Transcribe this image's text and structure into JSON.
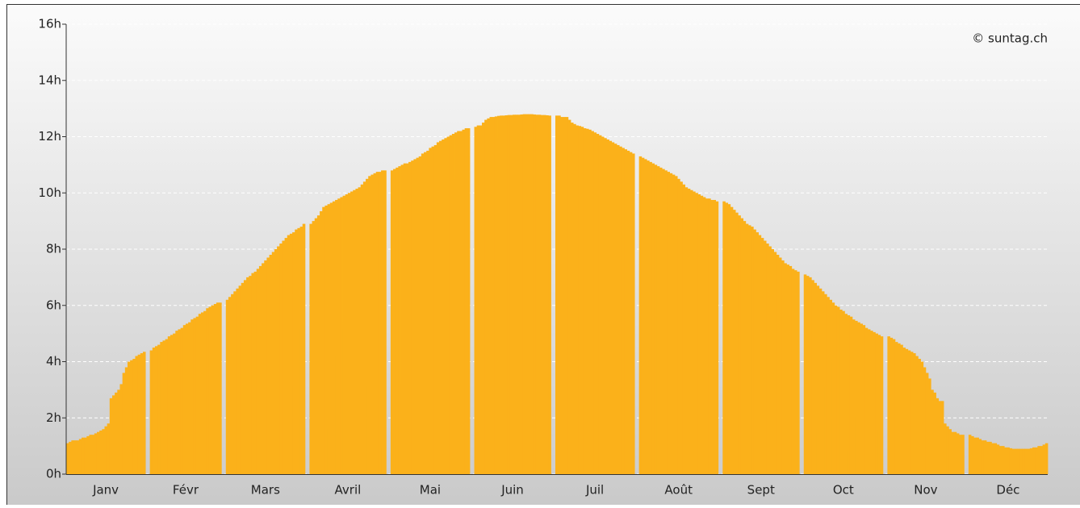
{
  "chart_data": {
    "type": "bar",
    "watermark": "© suntag.ch",
    "color": "#fbb11a",
    "grid": true,
    "ylim": [
      0,
      16
    ],
    "yticks": [
      {
        "value": 0,
        "label": "0h"
      },
      {
        "value": 2,
        "label": "2h"
      },
      {
        "value": 4,
        "label": "4h"
      },
      {
        "value": 6,
        "label": "6h"
      },
      {
        "value": 8,
        "label": "8h"
      },
      {
        "value": 10,
        "label": "10h"
      },
      {
        "value": 12,
        "label": "12h"
      },
      {
        "value": 14,
        "label": "14h"
      },
      {
        "value": 16,
        "label": "16h"
      }
    ],
    "categories": [
      "Janv",
      "Févr",
      "Mars",
      "Avril",
      "Mai",
      "Juin",
      "Juil",
      "Août",
      "Sept",
      "Oct",
      "Nov",
      "Déc"
    ],
    "values": [
      [
        1.1,
        1.15,
        1.2,
        1.2,
        1.2,
        1.25,
        1.3,
        1.3,
        1.35,
        1.4,
        1.4,
        1.45,
        1.5,
        1.55,
        1.6,
        1.7,
        1.8,
        2.7,
        2.8,
        2.9,
        3.0,
        3.2,
        3.6,
        3.8,
        4.0,
        4.05,
        4.1,
        4.2,
        4.25,
        4.3,
        4.35
      ],
      [
        4.4,
        4.5,
        4.55,
        4.6,
        4.7,
        4.75,
        4.8,
        4.9,
        4.95,
        5.0,
        5.1,
        5.15,
        5.2,
        5.3,
        5.35,
        5.4,
        5.5,
        5.55,
        5.6,
        5.7,
        5.75,
        5.8,
        5.9,
        5.95,
        6.0,
        6.05,
        6.1,
        6.1
      ],
      [
        6.2,
        6.3,
        6.4,
        6.5,
        6.6,
        6.7,
        6.8,
        6.9,
        7.0,
        7.05,
        7.15,
        7.2,
        7.3,
        7.4,
        7.5,
        7.6,
        7.7,
        7.8,
        7.9,
        8.0,
        8.1,
        8.2,
        8.3,
        8.4,
        8.5,
        8.55,
        8.6,
        8.7,
        8.75,
        8.8,
        8.9
      ],
      [
        8.9,
        9.0,
        9.1,
        9.2,
        9.35,
        9.5,
        9.55,
        9.6,
        9.65,
        9.7,
        9.75,
        9.8,
        9.85,
        9.9,
        9.95,
        10.0,
        10.05,
        10.1,
        10.15,
        10.2,
        10.3,
        10.4,
        10.5,
        10.6,
        10.65,
        10.7,
        10.75,
        10.75,
        10.8,
        10.8
      ],
      [
        10.8,
        10.85,
        10.9,
        10.95,
        11.0,
        11.05,
        11.05,
        11.1,
        11.15,
        11.2,
        11.25,
        11.3,
        11.4,
        11.45,
        11.5,
        11.6,
        11.65,
        11.7,
        11.8,
        11.85,
        11.9,
        11.95,
        12.0,
        12.05,
        12.1,
        12.15,
        12.2,
        12.2,
        12.25,
        12.3,
        12.3
      ],
      [
        12.35,
        12.4,
        12.4,
        12.5,
        12.6,
        12.65,
        12.7,
        12.7,
        12.72,
        12.74,
        12.75,
        12.75,
        12.76,
        12.77,
        12.77,
        12.78,
        12.78,
        12.78,
        12.79,
        12.8,
        12.8,
        12.8,
        12.8,
        12.79,
        12.78,
        12.78,
        12.77,
        12.77,
        12.76,
        12.75
      ],
      [
        12.75,
        12.75,
        12.7,
        12.7,
        12.7,
        12.6,
        12.5,
        12.45,
        12.4,
        12.38,
        12.35,
        12.3,
        12.28,
        12.25,
        12.2,
        12.15,
        12.1,
        12.05,
        12.0,
        11.95,
        11.9,
        11.85,
        11.8,
        11.75,
        11.7,
        11.65,
        11.6,
        11.55,
        11.5,
        11.45,
        11.4
      ],
      [
        11.3,
        11.25,
        11.2,
        11.15,
        11.1,
        11.05,
        11.0,
        10.95,
        10.9,
        10.85,
        10.8,
        10.75,
        10.7,
        10.65,
        10.6,
        10.5,
        10.4,
        10.3,
        10.2,
        10.15,
        10.1,
        10.05,
        10.0,
        9.95,
        9.9,
        9.85,
        9.8,
        9.8,
        9.75,
        9.75,
        9.7
      ],
      [
        9.7,
        9.65,
        9.6,
        9.5,
        9.4,
        9.3,
        9.2,
        9.1,
        9.0,
        8.9,
        8.85,
        8.8,
        8.7,
        8.6,
        8.5,
        8.4,
        8.3,
        8.2,
        8.1,
        8.0,
        7.9,
        7.8,
        7.7,
        7.6,
        7.5,
        7.45,
        7.4,
        7.3,
        7.25,
        7.2
      ],
      [
        7.1,
        7.05,
        7.0,
        6.9,
        6.8,
        6.7,
        6.6,
        6.5,
        6.4,
        6.3,
        6.2,
        6.1,
        6.0,
        5.95,
        5.85,
        5.8,
        5.7,
        5.65,
        5.6,
        5.5,
        5.45,
        5.4,
        5.35,
        5.3,
        5.2,
        5.15,
        5.1,
        5.05,
        5.0,
        4.95,
        4.9
      ],
      [
        4.9,
        4.85,
        4.8,
        4.7,
        4.65,
        4.6,
        4.5,
        4.45,
        4.4,
        4.35,
        4.3,
        4.2,
        4.1,
        4.0,
        3.8,
        3.6,
        3.4,
        3.0,
        2.9,
        2.7,
        2.6,
        2.6,
        1.8,
        1.7,
        1.6,
        1.5,
        1.5,
        1.45,
        1.4,
        1.4
      ],
      [
        1.4,
        1.35,
        1.3,
        1.3,
        1.25,
        1.2,
        1.2,
        1.15,
        1.15,
        1.1,
        1.1,
        1.05,
        1.0,
        1.0,
        0.95,
        0.95,
        0.92,
        0.9,
        0.9,
        0.9,
        0.9,
        0.9,
        0.9,
        0.9,
        0.92,
        0.95,
        0.95,
        1.0,
        1.0,
        1.05,
        1.1
      ]
    ]
  }
}
